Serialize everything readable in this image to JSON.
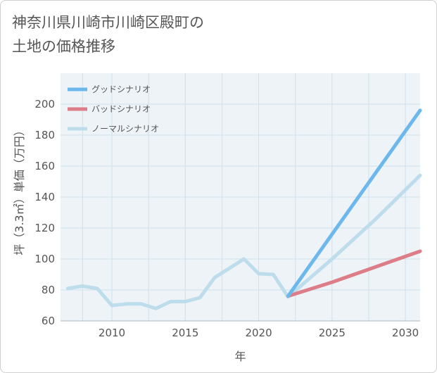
{
  "chart_data": {
    "type": "line",
    "title": "神奈川県川崎市川崎区殿町の土地の価格推移",
    "title_lines": [
      "神奈川県川崎市川崎区殿町の",
      "土地の価格推移"
    ],
    "xlabel": "年",
    "ylabel": "坪（3.3㎡）単価（万円）",
    "xlim": [
      2006.5,
      2031
    ],
    "ylim": [
      60,
      220
    ],
    "xticks": [
      2010,
      2015,
      2020,
      2025,
      2030
    ],
    "yticks": [
      60,
      80,
      100,
      120,
      140,
      160,
      180,
      200
    ],
    "grid": true,
    "legend_position": "top-left",
    "series": [
      {
        "name": "グッドシナリオ",
        "color": "#6cb8ec",
        "x": [
          2022,
          2031
        ],
        "values": [
          76,
          196
        ]
      },
      {
        "name": "バッドシナリオ",
        "color": "#dd7d88",
        "x": [
          2022,
          2025,
          2028,
          2031
        ],
        "values": [
          76,
          85,
          95,
          105
        ]
      },
      {
        "name": "ノーマルシナリオ",
        "color": "#bddcec",
        "x": [
          2007,
          2008,
          2009,
          2010,
          2011,
          2012,
          2013,
          2014,
          2015,
          2016,
          2017,
          2018,
          2019,
          2020,
          2021,
          2022,
          2025,
          2028,
          2031
        ],
        "values": [
          81,
          82.5,
          81,
          70,
          71,
          71,
          68,
          72.5,
          72.5,
          75,
          88,
          94,
          100,
          90.5,
          90,
          75.5,
          100,
          126,
          154
        ]
      }
    ]
  }
}
